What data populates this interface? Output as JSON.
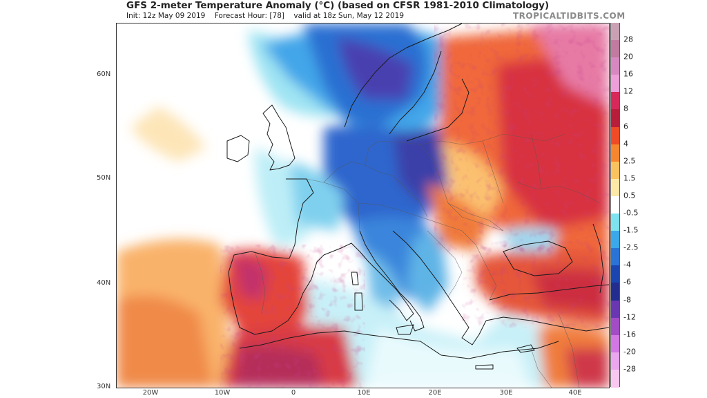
{
  "header": {
    "title": "GFS 2-meter Temperature Anomaly (°C) (based on CFSR 1981-2010 Climatology)",
    "init": "Init: 12z May 09 2019",
    "forecast_hour": "Forecast Hour: [78]",
    "valid": "valid at 18z Sun, May 12 2019",
    "brand": "TROPICALTIDBITS.COM"
  },
  "map": {
    "lat_labels": [
      "60N",
      "50N",
      "40N",
      "30N"
    ],
    "lon_labels": [
      "20W",
      "10W",
      "0",
      "10E",
      "20E",
      "30E",
      "40E"
    ],
    "region": "Europe / North Africa / Middle East",
    "colors": {
      "deep_warm": "#b8264a",
      "warm": "#e8563a",
      "mild_warm": "#f4a460",
      "neutral": "#ffffff",
      "cool": "#7fd3ec",
      "cold": "#2f6fd1",
      "very_cold": "#3b3aa8"
    }
  },
  "colorbar": {
    "labels": [
      "28",
      "20",
      "16",
      "12",
      "8",
      "6",
      "4",
      "2.5",
      "1.5",
      "0.5",
      "-0.5",
      "-1.5",
      "-2.5",
      "-4",
      "-6",
      "-8",
      "-12",
      "-16",
      "-20",
      "-28"
    ],
    "colors": [
      "#c9a0b4",
      "#c27aa0",
      "#d888c0",
      "#ee9ed8",
      "#d8285a",
      "#b81e3a",
      "#f04a26",
      "#f8862e",
      "#fbc35f",
      "#fde8a8",
      "#ffffff",
      "#7ee2ef",
      "#3aa8ea",
      "#2a74d8",
      "#1b45b0",
      "#232c8f",
      "#6a37b3",
      "#a24cc6",
      "#d277e3",
      "#eaa6ee",
      "#f8c8f0"
    ]
  }
}
